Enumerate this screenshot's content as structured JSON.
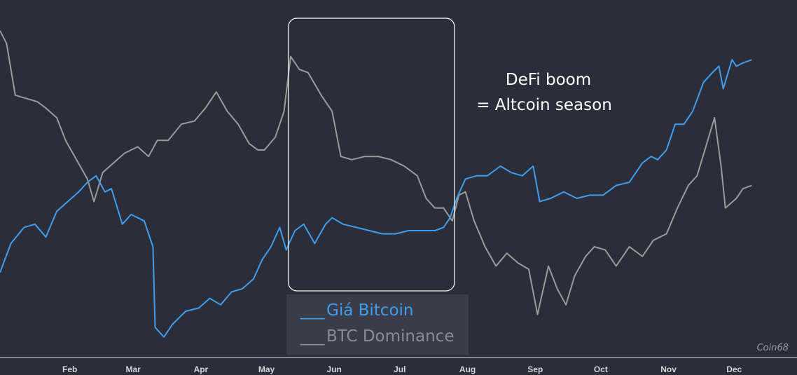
{
  "chart_data": {
    "type": "line",
    "title": "",
    "xlabel": "",
    "ylabel": "",
    "x_ticks": [
      "Feb",
      "Mar",
      "Apr",
      "May",
      "Jun",
      "Jul",
      "Aug",
      "Sep",
      "Oct",
      "Nov",
      "Dec"
    ],
    "x_range": [
      "2020-01-01",
      "2020-12-10"
    ],
    "grid": false,
    "legend_position": "bottom-center",
    "highlight": {
      "from": "2020-05-12",
      "to": "2020-07-27",
      "label_line1": "DeFi boom",
      "label_line2": "= Altcoin season"
    },
    "series": [
      {
        "name": "Giá Bitcoin",
        "color": "#3d9df2",
        "legend_marker": "___",
        "points": [
          [
            "2020-01-01",
            0.22
          ],
          [
            "2020-01-06",
            0.31
          ],
          [
            "2020-01-12",
            0.36
          ],
          [
            "2020-01-17",
            0.37
          ],
          [
            "2020-01-22",
            0.33
          ],
          [
            "2020-01-27",
            0.41
          ],
          [
            "2020-02-01",
            0.44
          ],
          [
            "2020-02-06",
            0.47
          ],
          [
            "2020-02-10",
            0.5
          ],
          [
            "2020-02-14",
            0.52
          ],
          [
            "2020-02-18",
            0.47
          ],
          [
            "2020-02-21",
            0.48
          ],
          [
            "2020-02-26",
            0.37
          ],
          [
            "2020-03-01",
            0.4
          ],
          [
            "2020-03-07",
            0.38
          ],
          [
            "2020-03-11",
            0.3
          ],
          [
            "2020-03-12",
            0.05
          ],
          [
            "2020-03-16",
            0.02
          ],
          [
            "2020-03-20",
            0.06
          ],
          [
            "2020-03-26",
            0.1
          ],
          [
            "2020-04-01",
            0.11
          ],
          [
            "2020-04-06",
            0.14
          ],
          [
            "2020-04-11",
            0.12
          ],
          [
            "2020-04-16",
            0.16
          ],
          [
            "2020-04-21",
            0.17
          ],
          [
            "2020-04-26",
            0.2
          ],
          [
            "2020-04-30",
            0.26
          ],
          [
            "2020-05-04",
            0.3
          ],
          [
            "2020-05-08",
            0.36
          ],
          [
            "2020-05-11",
            0.29
          ],
          [
            "2020-05-15",
            0.35
          ],
          [
            "2020-05-19",
            0.37
          ],
          [
            "2020-05-24",
            0.31
          ],
          [
            "2020-05-29",
            0.37
          ],
          [
            "2020-06-01",
            0.39
          ],
          [
            "2020-06-06",
            0.37
          ],
          [
            "2020-06-12",
            0.36
          ],
          [
            "2020-06-18",
            0.35
          ],
          [
            "2020-06-24",
            0.34
          ],
          [
            "2020-06-30",
            0.34
          ],
          [
            "2020-07-06",
            0.35
          ],
          [
            "2020-07-12",
            0.35
          ],
          [
            "2020-07-18",
            0.35
          ],
          [
            "2020-07-22",
            0.36
          ],
          [
            "2020-07-25",
            0.39
          ],
          [
            "2020-07-28",
            0.45
          ],
          [
            "2020-08-01",
            0.51
          ],
          [
            "2020-08-06",
            0.52
          ],
          [
            "2020-08-11",
            0.52
          ],
          [
            "2020-08-17",
            0.55
          ],
          [
            "2020-08-22",
            0.53
          ],
          [
            "2020-08-27",
            0.52
          ],
          [
            "2020-09-01",
            0.55
          ],
          [
            "2020-09-04",
            0.44
          ],
          [
            "2020-09-09",
            0.45
          ],
          [
            "2020-09-15",
            0.47
          ],
          [
            "2020-09-21",
            0.45
          ],
          [
            "2020-09-27",
            0.46
          ],
          [
            "2020-10-03",
            0.46
          ],
          [
            "2020-10-09",
            0.49
          ],
          [
            "2020-10-15",
            0.5
          ],
          [
            "2020-10-21",
            0.56
          ],
          [
            "2020-10-25",
            0.58
          ],
          [
            "2020-10-28",
            0.57
          ],
          [
            "2020-11-01",
            0.6
          ],
          [
            "2020-11-05",
            0.68
          ],
          [
            "2020-11-09",
            0.68
          ],
          [
            "2020-11-13",
            0.72
          ],
          [
            "2020-11-18",
            0.81
          ],
          [
            "2020-11-22",
            0.84
          ],
          [
            "2020-11-25",
            0.86
          ],
          [
            "2020-11-27",
            0.79
          ],
          [
            "2020-12-01",
            0.88
          ],
          [
            "2020-12-03",
            0.86
          ],
          [
            "2020-12-06",
            0.87
          ],
          [
            "2020-12-10",
            0.88
          ]
        ]
      },
      {
        "name": "BTC Dominance",
        "color": "#9a9a9a",
        "legend_marker": "___",
        "points": [
          [
            "2020-01-01",
            0.97
          ],
          [
            "2020-01-04",
            0.93
          ],
          [
            "2020-01-08",
            0.77
          ],
          [
            "2020-01-13",
            0.76
          ],
          [
            "2020-01-18",
            0.75
          ],
          [
            "2020-01-22",
            0.73
          ],
          [
            "2020-01-27",
            0.7
          ],
          [
            "2020-01-31",
            0.63
          ],
          [
            "2020-02-05",
            0.57
          ],
          [
            "2020-02-10",
            0.51
          ],
          [
            "2020-02-13",
            0.44
          ],
          [
            "2020-02-17",
            0.53
          ],
          [
            "2020-02-22",
            0.56
          ],
          [
            "2020-02-27",
            0.59
          ],
          [
            "2020-03-04",
            0.61
          ],
          [
            "2020-03-09",
            0.58
          ],
          [
            "2020-03-13",
            0.63
          ],
          [
            "2020-03-18",
            0.63
          ],
          [
            "2020-03-24",
            0.68
          ],
          [
            "2020-03-30",
            0.69
          ],
          [
            "2020-04-04",
            0.73
          ],
          [
            "2020-04-09",
            0.78
          ],
          [
            "2020-04-14",
            0.72
          ],
          [
            "2020-04-19",
            0.68
          ],
          [
            "2020-04-24",
            0.62
          ],
          [
            "2020-04-28",
            0.6
          ],
          [
            "2020-05-01",
            0.6
          ],
          [
            "2020-05-06",
            0.64
          ],
          [
            "2020-05-10",
            0.72
          ],
          [
            "2020-05-13",
            0.89
          ],
          [
            "2020-05-17",
            0.85
          ],
          [
            "2020-05-21",
            0.84
          ],
          [
            "2020-05-27",
            0.77
          ],
          [
            "2020-06-01",
            0.72
          ],
          [
            "2020-06-05",
            0.58
          ],
          [
            "2020-06-10",
            0.57
          ],
          [
            "2020-06-16",
            0.58
          ],
          [
            "2020-06-22",
            0.58
          ],
          [
            "2020-06-28",
            0.57
          ],
          [
            "2020-07-04",
            0.55
          ],
          [
            "2020-07-10",
            0.52
          ],
          [
            "2020-07-14",
            0.45
          ],
          [
            "2020-07-18",
            0.42
          ],
          [
            "2020-07-22",
            0.42
          ],
          [
            "2020-07-26",
            0.38
          ],
          [
            "2020-07-29",
            0.46
          ],
          [
            "2020-08-01",
            0.47
          ],
          [
            "2020-08-05",
            0.38
          ],
          [
            "2020-08-10",
            0.3
          ],
          [
            "2020-08-15",
            0.24
          ],
          [
            "2020-08-20",
            0.28
          ],
          [
            "2020-08-25",
            0.25
          ],
          [
            "2020-08-30",
            0.23
          ],
          [
            "2020-09-03",
            0.09
          ],
          [
            "2020-09-08",
            0.24
          ],
          [
            "2020-09-12",
            0.17
          ],
          [
            "2020-09-16",
            0.12
          ],
          [
            "2020-09-20",
            0.21
          ],
          [
            "2020-09-25",
            0.27
          ],
          [
            "2020-09-29",
            0.3
          ],
          [
            "2020-10-04",
            0.29
          ],
          [
            "2020-10-09",
            0.24
          ],
          [
            "2020-10-15",
            0.3
          ],
          [
            "2020-10-21",
            0.27
          ],
          [
            "2020-10-26",
            0.32
          ],
          [
            "2020-11-01",
            0.34
          ],
          [
            "2020-11-06",
            0.42
          ],
          [
            "2020-11-11",
            0.49
          ],
          [
            "2020-11-15",
            0.52
          ],
          [
            "2020-11-19",
            0.61
          ],
          [
            "2020-11-23",
            0.7
          ],
          [
            "2020-11-26",
            0.55
          ],
          [
            "2020-11-28",
            0.42
          ],
          [
            "2020-12-03",
            0.45
          ],
          [
            "2020-12-06",
            0.48
          ],
          [
            "2020-12-10",
            0.49
          ]
        ]
      }
    ]
  },
  "legend": {
    "bitcoin": {
      "marker": "___",
      "label": "Giá Bitcoin"
    },
    "dominance": {
      "marker": "___",
      "label": "BTC Dominance"
    }
  },
  "annotation": {
    "line1": "DeFi boom",
    "line2": "= Altcoin season"
  },
  "watermark": "Coin68",
  "colors": {
    "background": "#2b2e38",
    "bitcoin": "#3d9df2",
    "dominance": "#9a9a9a",
    "legend_bg": "#3a3d47"
  }
}
